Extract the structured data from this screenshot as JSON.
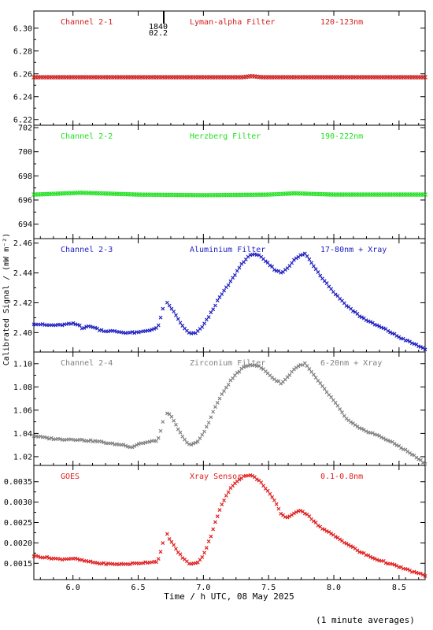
{
  "figure": {
    "ylabel": "Calibrated Signal / (mW m⁻²)",
    "xlabel": "Time / h UTC, 08 May 2025",
    "footnote": "(1 minute averages)",
    "marker_time": "1840",
    "marker_detail": "02.2",
    "x_ticks": [
      "6.0",
      "6.5",
      "7.0",
      "7.5",
      "8.0",
      "8.5"
    ]
  },
  "chart_data": [
    {
      "type": "scatter",
      "channel": "Channel 2-1",
      "filter": "Lyman-alpha Filter",
      "band": "120-123nm",
      "color": "#d02020",
      "ylim": [
        6.215,
        6.315
      ],
      "yticks": [
        "6.22",
        "6.24",
        "6.26",
        "6.28",
        "6.30"
      ],
      "xlim": [
        5.7,
        8.7
      ],
      "x": [
        5.7,
        6.0,
        6.5,
        7.0,
        7.3,
        7.37,
        7.45,
        8.0,
        8.7
      ],
      "y": [
        6.257,
        6.257,
        6.257,
        6.257,
        6.257,
        6.258,
        6.257,
        6.257,
        6.257
      ]
    },
    {
      "type": "scatter",
      "channel": "Channel 2-2",
      "filter": "Herzberg Filter",
      "band": "190-222nm",
      "color": "#20e020",
      "ylim": [
        692.8,
        702.2
      ],
      "yticks": [
        "694",
        "696",
        "698",
        "700",
        "702"
      ],
      "xlim": [
        5.7,
        8.7
      ],
      "x": [
        5.7,
        6.06,
        6.5,
        7.0,
        7.5,
        7.7,
        8.0,
        8.7
      ],
      "y": [
        696.45,
        696.6,
        696.45,
        696.4,
        696.45,
        696.55,
        696.45,
        696.45
      ]
    },
    {
      "type": "scatter",
      "channel": "Channel 2-3",
      "filter": "Aluminium Filter",
      "band": "17-80nm + Xray",
      "color": "#2020c0",
      "ylim": [
        2.387,
        2.463
      ],
      "yticks": [
        "2.40",
        "2.42",
        "2.44",
        "2.46"
      ],
      "xlim": [
        5.7,
        8.7
      ],
      "x": [
        5.7,
        5.8,
        5.9,
        6.0,
        6.05,
        6.07,
        6.1,
        6.15,
        6.2,
        6.25,
        6.3,
        6.4,
        6.5,
        6.55,
        6.6,
        6.65,
        6.68,
        6.7,
        6.72,
        6.75,
        6.8,
        6.85,
        6.9,
        6.95,
        7.0,
        7.05,
        7.1,
        7.15,
        7.2,
        7.25,
        7.3,
        7.35,
        7.38,
        7.42,
        7.5,
        7.55,
        7.6,
        7.65,
        7.7,
        7.75,
        7.78,
        7.82,
        7.9,
        8.0,
        8.1,
        8.2,
        8.3,
        8.4,
        8.5,
        8.6,
        8.7
      ],
      "y": [
        2.406,
        2.405,
        2.405,
        2.406,
        2.405,
        2.403,
        2.404,
        2.404,
        2.402,
        2.401,
        2.401,
        2.4,
        2.4,
        2.401,
        2.402,
        2.403,
        2.413,
        2.419,
        2.42,
        2.417,
        2.41,
        2.403,
        2.399,
        2.4,
        2.405,
        2.412,
        2.42,
        2.427,
        2.433,
        2.44,
        2.447,
        2.451,
        2.453,
        2.452,
        2.446,
        2.442,
        2.44,
        2.444,
        2.449,
        2.452,
        2.453,
        2.448,
        2.438,
        2.427,
        2.418,
        2.411,
        2.406,
        2.402,
        2.397,
        2.393,
        2.389
      ]
    },
    {
      "type": "scatter",
      "channel": "Channel 2-4",
      "filter": "Zirconium Filter",
      "band": "6-20nm + Xray",
      "color": "#808080",
      "ylim": [
        1.0125,
        1.11
      ],
      "yticks": [
        "1.02",
        "1.04",
        "1.06",
        "1.08",
        "1.10"
      ],
      "xlim": [
        5.7,
        8.7
      ],
      "x": [
        5.7,
        5.8,
        5.9,
        6.0,
        6.1,
        6.2,
        6.3,
        6.4,
        6.45,
        6.5,
        6.55,
        6.6,
        6.65,
        6.68,
        6.7,
        6.72,
        6.75,
        6.8,
        6.85,
        6.9,
        6.95,
        7.0,
        7.05,
        7.1,
        7.15,
        7.2,
        7.25,
        7.3,
        7.35,
        7.4,
        7.45,
        7.5,
        7.55,
        7.6,
        7.65,
        7.7,
        7.75,
        7.78,
        7.82,
        7.9,
        8.0,
        8.1,
        8.2,
        8.3,
        8.4,
        8.5,
        8.6,
        8.7
      ],
      "y": [
        1.038,
        1.036,
        1.035,
        1.035,
        1.034,
        1.033,
        1.031,
        1.03,
        1.028,
        1.031,
        1.032,
        1.033,
        1.034,
        1.045,
        1.055,
        1.058,
        1.055,
        1.045,
        1.035,
        1.03,
        1.032,
        1.04,
        1.052,
        1.065,
        1.075,
        1.084,
        1.091,
        1.096,
        1.099,
        1.099,
        1.096,
        1.091,
        1.086,
        1.083,
        1.089,
        1.096,
        1.099,
        1.1,
        1.094,
        1.082,
        1.068,
        1.052,
        1.044,
        1.04,
        1.035,
        1.029,
        1.022,
        1.014
      ]
    },
    {
      "type": "scatter",
      "channel": "GOES",
      "filter": "Xray Sensor",
      "band": "0.1-0.8nm",
      "color": "#e02020",
      "ylim": [
        0.0011,
        0.0039
      ],
      "yticks": [
        "0.0015",
        "0.0020",
        "0.0025",
        "0.0030",
        "0.0035"
      ],
      "xlim": [
        5.7,
        8.7
      ],
      "x": [
        5.7,
        5.8,
        5.9,
        6.0,
        6.1,
        6.2,
        6.3,
        6.4,
        6.5,
        6.55,
        6.6,
        6.65,
        6.68,
        6.7,
        6.72,
        6.75,
        6.8,
        6.85,
        6.9,
        6.95,
        7.0,
        7.05,
        7.1,
        7.15,
        7.2,
        7.25,
        7.3,
        7.35,
        7.4,
        7.45,
        7.5,
        7.55,
        7.6,
        7.65,
        7.7,
        7.75,
        7.8,
        7.85,
        7.9,
        8.0,
        8.1,
        8.2,
        8.3,
        8.4,
        8.5,
        8.6,
        8.7
      ],
      "y": [
        0.00168,
        0.00164,
        0.0016,
        0.00162,
        0.00155,
        0.0015,
        0.00148,
        0.00148,
        0.0015,
        0.00152,
        0.00153,
        0.00155,
        0.00185,
        0.00215,
        0.00222,
        0.00205,
        0.0018,
        0.0016,
        0.00148,
        0.0015,
        0.0017,
        0.0021,
        0.0026,
        0.003,
        0.0033,
        0.0035,
        0.00362,
        0.00367,
        0.0036,
        0.00345,
        0.00325,
        0.003,
        0.00268,
        0.00262,
        0.00275,
        0.00278,
        0.0027,
        0.00252,
        0.00238,
        0.00218,
        0.00198,
        0.00178,
        0.00163,
        0.00152,
        0.00141,
        0.0013,
        0.0012
      ]
    }
  ]
}
